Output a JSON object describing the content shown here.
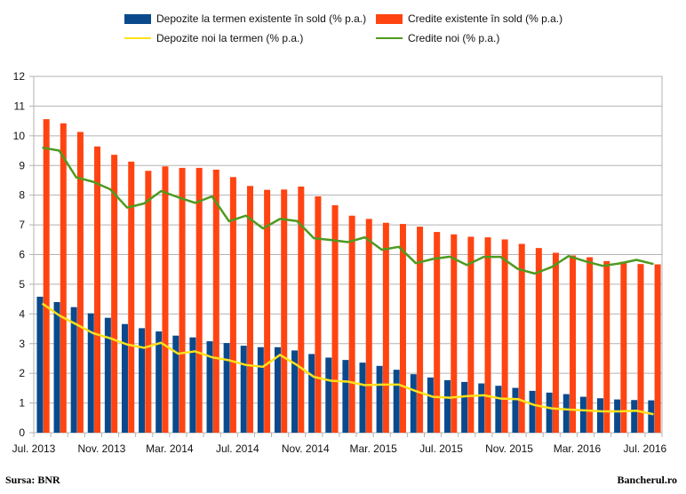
{
  "legend": {
    "dep_bar": "Depozite la termen existente în sold (% p.a.)",
    "cred_bar": "Credite existente în sold (% p.a.)",
    "dep_line": "Depozite noi la termen (% p.a.)",
    "cred_line": "Credite noi (% p.a.)"
  },
  "footer": {
    "source": "Sursa: BNR",
    "brand": "Bancherul.ro"
  },
  "chart_data": {
    "type": "bar",
    "title": "",
    "xlabel": "",
    "ylabel": "",
    "ylim": [
      0,
      12
    ],
    "yticks": [
      0,
      1,
      2,
      3,
      4,
      5,
      6,
      7,
      8,
      9,
      10,
      11,
      12
    ],
    "grid": true,
    "legend_position": "top",
    "x_tick_labels": [
      "Jul. 2013",
      "Nov. 2013",
      "Mar. 2014",
      "Jul. 2014",
      "Nov. 2014",
      "Mar. 2015",
      "Jul. 2015",
      "Nov. 2015",
      "Mar. 2016",
      "Jul. 2016"
    ],
    "categories": [
      "Jul 2013",
      "Aug 2013",
      "Sep 2013",
      "Oct 2013",
      "Nov 2013",
      "Dec 2013",
      "Jan 2014",
      "Feb 2014",
      "Mar 2014",
      "Apr 2014",
      "May 2014",
      "Jun 2014",
      "Jul 2014",
      "Aug 2014",
      "Sep 2014",
      "Oct 2014",
      "Nov 2014",
      "Dec 2014",
      "Jan 2015",
      "Feb 2015",
      "Mar 2015",
      "Apr 2015",
      "May 2015",
      "Jun 2015",
      "Jul 2015",
      "Aug 2015",
      "Sep 2015",
      "Oct 2015",
      "Nov 2015",
      "Dec 2015",
      "Jan 2016",
      "Feb 2016",
      "Mar 2016",
      "Apr 2016",
      "May 2016",
      "Jun 2016",
      "Jul 2016"
    ],
    "series": [
      {
        "name": "Depozite la termen existente în sold (% p.a.)",
        "kind": "bar",
        "color": "#0a4a8c",
        "values": [
          4.58,
          4.4,
          4.23,
          4.02,
          3.87,
          3.66,
          3.52,
          3.41,
          3.27,
          3.21,
          3.08,
          3.02,
          2.93,
          2.88,
          2.88,
          2.77,
          2.65,
          2.53,
          2.45,
          2.36,
          2.25,
          2.12,
          1.97,
          1.86,
          1.77,
          1.71,
          1.66,
          1.58,
          1.51,
          1.41,
          1.35,
          1.3,
          1.21,
          1.16,
          1.12,
          1.1,
          1.09
        ]
      },
      {
        "name": "Credite existente în sold (% p.a.)",
        "kind": "bar",
        "color": "#ff4412",
        "values": [
          10.56,
          10.42,
          10.13,
          9.64,
          9.36,
          9.13,
          8.82,
          8.97,
          8.92,
          8.92,
          8.86,
          8.61,
          8.31,
          8.18,
          8.19,
          8.29,
          7.96,
          7.66,
          7.31,
          7.2,
          7.07,
          7.03,
          6.94,
          6.76,
          6.68,
          6.6,
          6.58,
          6.51,
          6.36,
          6.22,
          6.06,
          5.97,
          5.91,
          5.78,
          5.76,
          5.68,
          5.67
        ]
      },
      {
        "name": "Depozite noi la termen (% p.a.)",
        "kind": "line",
        "color": "#ffe01a",
        "values": [
          4.35,
          3.95,
          3.65,
          3.35,
          3.18,
          2.97,
          2.86,
          3.03,
          2.66,
          2.74,
          2.54,
          2.44,
          2.28,
          2.22,
          2.62,
          2.28,
          1.88,
          1.75,
          1.72,
          1.6,
          1.62,
          1.62,
          1.4,
          1.21,
          1.18,
          1.23,
          1.26,
          1.15,
          1.13,
          0.93,
          0.82,
          0.78,
          0.75,
          0.72,
          0.72,
          0.74,
          0.62
        ]
      },
      {
        "name": "Credite noi (% p.a.)",
        "kind": "line",
        "color": "#4e9a1f",
        "values": [
          9.6,
          9.5,
          8.6,
          8.45,
          8.2,
          7.58,
          7.72,
          8.14,
          7.93,
          7.74,
          7.96,
          7.12,
          7.31,
          6.88,
          7.2,
          7.13,
          6.55,
          6.49,
          6.42,
          6.58,
          6.16,
          6.26,
          5.71,
          5.85,
          5.93,
          5.65,
          5.92,
          5.92,
          5.52,
          5.36,
          5.58,
          5.95,
          5.77,
          5.62,
          5.7,
          5.82,
          5.68
        ]
      }
    ]
  }
}
